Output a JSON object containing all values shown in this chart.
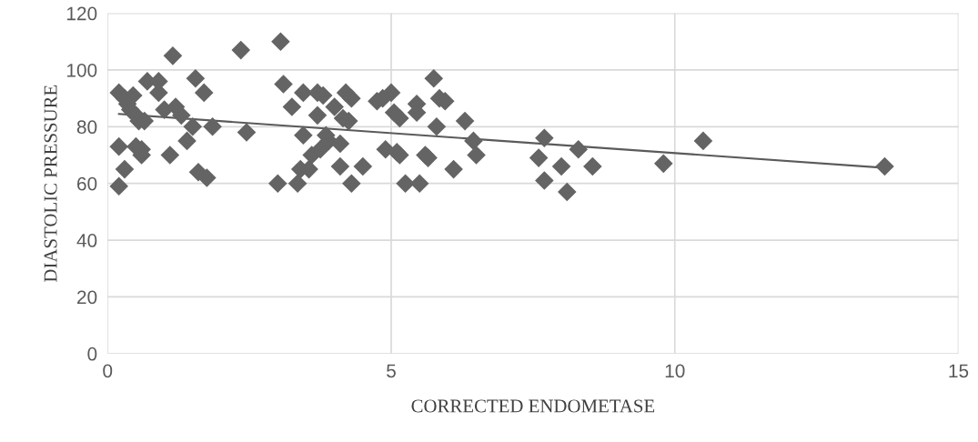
{
  "chart_data": {
    "type": "scatter",
    "xlabel": "CORRECTED ENDOMETASE",
    "ylabel": "DIASTOLIC PRESSURE",
    "xlim": [
      0,
      15
    ],
    "xticks": [
      0,
      5,
      10,
      15
    ],
    "ylim": [
      0,
      120
    ],
    "yticks": [
      0,
      20,
      40,
      60,
      80,
      100,
      120
    ],
    "grid": true,
    "marker": "diamond",
    "series": [
      {
        "color": "#646464",
        "x": [
          0.2,
          0.3,
          0.35,
          0.4,
          0.45,
          0.5,
          0.55,
          0.2,
          0.2,
          0.3,
          0.6,
          0.6,
          0.5,
          0.65,
          0.7,
          0.9,
          0.9,
          1.0,
          1.1,
          1.15,
          1.2,
          1.3,
          1.4,
          1.5,
          1.55,
          1.6,
          1.7,
          1.75,
          1.85,
          2.35,
          2.45,
          3.0,
          3.05,
          3.1,
          3.25,
          3.35,
          3.4,
          3.45,
          3.45,
          3.55,
          3.6,
          3.7,
          3.7,
          3.75,
          3.8,
          3.85,
          3.9,
          4.0,
          4.1,
          4.1,
          4.15,
          4.2,
          4.25,
          4.3,
          4.3,
          4.5,
          4.75,
          4.85,
          4.9,
          5.0,
          5.05,
          5.1,
          5.15,
          5.15,
          5.25,
          5.45,
          5.45,
          5.5,
          5.6,
          5.65,
          5.75,
          5.8,
          5.85,
          5.95,
          6.1,
          6.3,
          6.45,
          6.5,
          7.6,
          7.7,
          7.7,
          8.0,
          8.1,
          8.3,
          8.55,
          9.8,
          10.5,
          13.7
        ],
        "values": [
          92,
          90,
          88,
          86,
          91,
          84,
          82,
          73,
          59,
          65,
          72,
          70,
          73,
          82,
          96,
          96,
          92,
          86,
          70,
          105,
          87,
          84,
          75,
          80,
          97,
          64,
          92,
          62,
          80,
          107,
          78,
          60,
          110,
          95,
          87,
          60,
          65,
          92,
          77,
          65,
          70,
          92,
          84,
          72,
          91,
          77,
          75,
          87,
          74,
          66,
          83,
          92,
          82,
          90,
          60,
          66,
          89,
          90,
          72,
          92,
          85,
          71,
          83,
          70,
          60,
          88,
          85,
          60,
          70,
          69,
          97,
          80,
          90,
          89,
          65,
          82,
          75,
          70,
          69,
          76,
          61,
          66,
          57,
          72,
          66,
          67,
          75,
          66
        ]
      },
      {
        "type": "line",
        "color": "#5a5a5a",
        "marker": "none",
        "x": [
          0.2,
          13.7
        ],
        "values": [
          84.5,
          65.5
        ]
      }
    ]
  }
}
